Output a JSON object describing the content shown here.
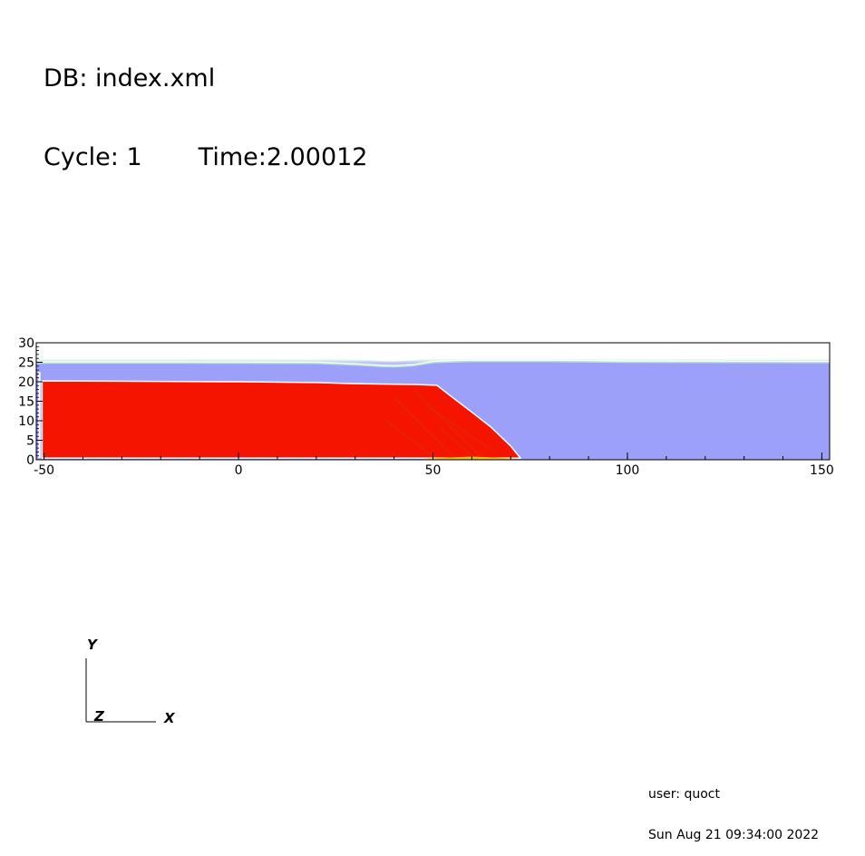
{
  "header": {
    "db_label": "DB: index.xml",
    "cycle_label": "Cycle: 1",
    "time_label": "Time:2.00012"
  },
  "chart_data": {
    "type": "area",
    "title": "",
    "xlabel": "",
    "ylabel": "",
    "xlim": [
      -52,
      152
    ],
    "ylim": [
      0,
      30
    ],
    "x_ticks": [
      -50,
      0,
      50,
      100,
      150
    ],
    "x_tick_labels": [
      "-50",
      "0",
      "50",
      "100",
      "150"
    ],
    "y_ticks": [
      0,
      5,
      10,
      15,
      20,
      25,
      30
    ],
    "y_tick_labels": [
      "0",
      "5",
      "10",
      "15",
      "20",
      "25",
      "30"
    ],
    "grid": false,
    "legend": "none",
    "series": [
      {
        "color": "#9ca0f8",
        "x": [
          -52,
          -20,
          20,
          30,
          37,
          40,
          45,
          50,
          55,
          60,
          80,
          100,
          152
        ],
        "y": [
          24.8,
          24.8,
          24.7,
          24.3,
          23.9,
          23.8,
          24.1,
          24.9,
          25.1,
          25.2,
          25.2,
          25.0,
          24.9
        ]
      },
      {
        "color": "#f51400",
        "x": [
          -50.5,
          -50.5,
          -20,
          0,
          20,
          30,
          45,
          51,
          55,
          60,
          65,
          70,
          72.5
        ],
        "y": [
          0.4,
          20.2,
          20.1,
          20.0,
          19.8,
          19.5,
          19.3,
          19.1,
          16,
          12.2,
          8.3,
          3.5,
          0.4
        ]
      },
      {
        "color": "#f6b800",
        "x": [
          48,
          55,
          60,
          65,
          71
        ],
        "y": [
          0.3,
          0.6,
          0.8,
          0.6,
          0.3
        ]
      }
    ]
  },
  "triad": {
    "y_label": "Y",
    "z_label": "Z",
    "x_label": "X"
  },
  "footer": {
    "user": "user: quoct",
    "date": "Sun Aug 21 09:34:00 2022"
  }
}
